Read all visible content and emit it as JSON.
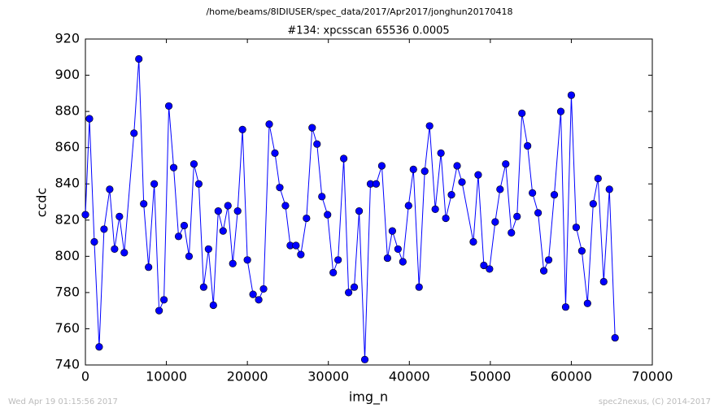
{
  "header": "/home/beams/8IDIUSER/spec_data/2017/Apr2017/jonghun20170418",
  "footer_left": "Wed Apr 19 01:15:56 2017",
  "footer_right": "spec2nexus, (C) 2014-2017",
  "chart_data": {
    "type": "line",
    "title": "#134: xpcsscan 65536 0.0005",
    "x_label": "img_n",
    "y_label": "ccdc",
    "xlim": [
      0,
      70000
    ],
    "xticks": [
      0,
      10000,
      20000,
      30000,
      40000,
      50000,
      60000,
      70000
    ],
    "ylim": [
      740,
      920
    ],
    "yticks": [
      740,
      760,
      780,
      800,
      820,
      840,
      860,
      880,
      900,
      920
    ],
    "series": [
      {
        "name": "ccdc",
        "color": "#0000ff",
        "x": [
          0,
          500,
          1100,
          1700,
          2300,
          3000,
          3600,
          4200,
          4800,
          6000,
          6600,
          7200,
          7800,
          8500,
          9100,
          9700,
          10300,
          10900,
          11500,
          12200,
          12800,
          13400,
          14000,
          14600,
          15200,
          15800,
          16400,
          17000,
          17600,
          18200,
          18800,
          19400,
          20000,
          20700,
          21400,
          22000,
          22700,
          23400,
          24000,
          24700,
          25300,
          26000,
          26600,
          27300,
          28000,
          28600,
          29200,
          29900,
          30600,
          31200,
          31900,
          32500,
          33200,
          33800,
          34500,
          35200,
          35900,
          36600,
          37300,
          37900,
          38600,
          39200,
          39900,
          40500,
          41200,
          41900,
          42500,
          43200,
          43900,
          44500,
          45200,
          45900,
          46500,
          47900,
          48500,
          49200,
          49900,
          50600,
          51200,
          51900,
          52600,
          53300,
          53900,
          54600,
          55200,
          55900,
          56600,
          57200,
          57900,
          58700,
          59300,
          60000,
          60600,
          61300,
          62000,
          62700,
          63300,
          64000,
          64700,
          65400
        ],
        "values": [
          823,
          876,
          808,
          750,
          815,
          837,
          804,
          822,
          802,
          868,
          909,
          829,
          794,
          840,
          770,
          776,
          883,
          849,
          811,
          817,
          800,
          851,
          840,
          783,
          804,
          773,
          825,
          814,
          828,
          796,
          825,
          870,
          798,
          779,
          776,
          782,
          873,
          857,
          838,
          828,
          806,
          806,
          801,
          821,
          871,
          862,
          833,
          823,
          791,
          798,
          854,
          780,
          783,
          825,
          743,
          840,
          840,
          850,
          799,
          814,
          804,
          797,
          828,
          848,
          783,
          847,
          872,
          826,
          857,
          821,
          834,
          850,
          841,
          808,
          845,
          795,
          793,
          819,
          837,
          851,
          813,
          822,
          879,
          861,
          835,
          824,
          792,
          798,
          834,
          880,
          772,
          889,
          816,
          803,
          774,
          829,
          843,
          786,
          837,
          755
        ]
      }
    ]
  }
}
